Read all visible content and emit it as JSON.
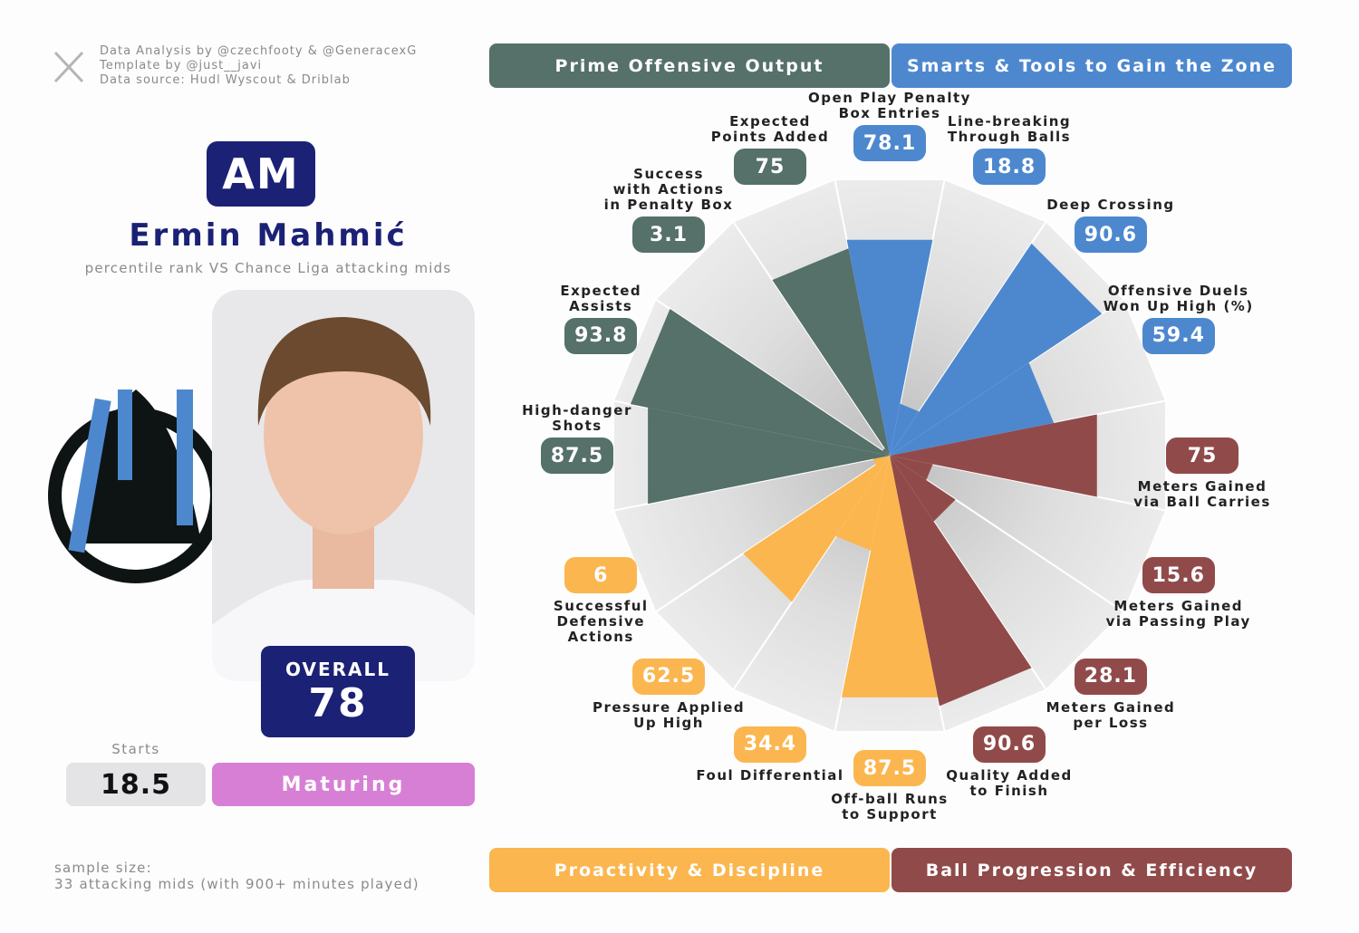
{
  "credits": [
    "Data Analysis by @czechfooty & @GeneracexG",
    "Template by @just__javi",
    "Data source: Hudl Wyscout & Driblab"
  ],
  "profile": {
    "position": "AM",
    "name": "Ermin Mahmić",
    "subtitle": "percentile rank VS Chance Liga attacking mids",
    "overall_label": "OVERALL",
    "overall": 78,
    "starts_label": "Starts",
    "starts": 18.5,
    "status": "Maturing",
    "sample_size": [
      "sample size:",
      "33 attacking mids (with 900+ minutes played)"
    ]
  },
  "chart_data": {
    "type": "polar-bar",
    "ylim": [
      0,
      100
    ],
    "series": [
      {
        "name": "Smarts & Tools to Gain the Zone",
        "color": "#4d88cf",
        "categories": [
          "Open Play Penalty\nBox Entries",
          "Line-breaking\nThrough Balls",
          "Deep Crossing",
          "Offensive Duels\nWon Up High (%)"
        ],
        "values": [
          78.1,
          18.8,
          90.6,
          59.4
        ]
      },
      {
        "name": "Ball Progression & Efficiency",
        "color": "#914a4a",
        "categories": [
          "Meters Gained\nvia Ball Carries",
          "Meters Gained\nvia Passing Play",
          "Meters Gained\nper Loss",
          "Quality Added\nto Finish"
        ],
        "values": [
          75,
          15.6,
          28.1,
          90.6
        ]
      },
      {
        "name": "Proactivity & Discipline",
        "color": "#fbb64f",
        "categories": [
          "Off-ball Runs\nto Support",
          "Foul Differential",
          "Pressure Applied\nUp High",
          "Successful\nDefensive\nActions"
        ],
        "values": [
          87.5,
          34.4,
          62.5,
          6
        ]
      },
      {
        "name": "Prime Offensive Output",
        "color": "#56706a",
        "categories": [
          "High-danger\nShots",
          "Expected\nAssists",
          "Success\nwith Actions\nin Penalty Box",
          "Expected\nPoints Added"
        ],
        "values": [
          87.5,
          93.8,
          3.1,
          75
        ]
      }
    ]
  }
}
